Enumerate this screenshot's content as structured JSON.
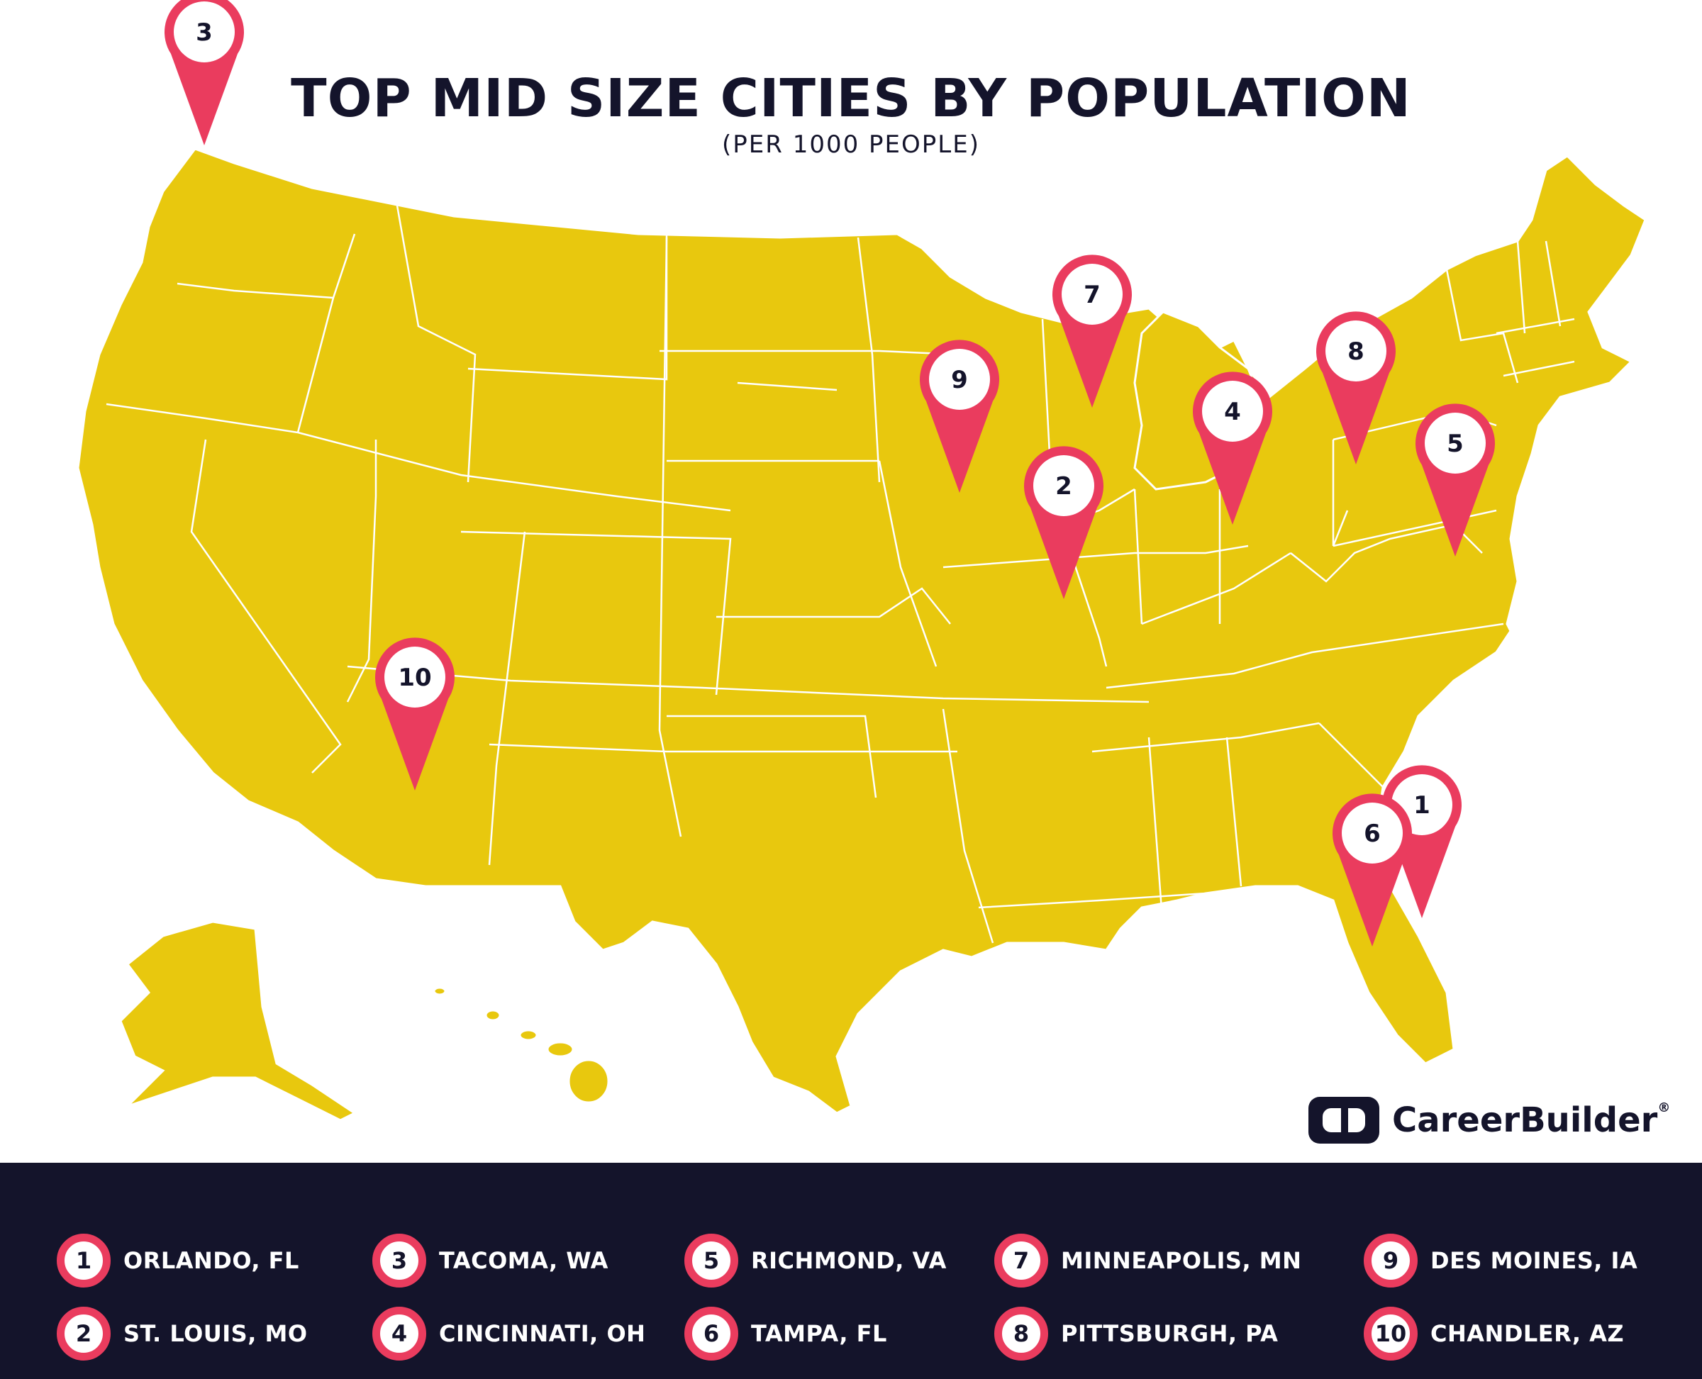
{
  "title": "TOP MID SIZE CITIES BY POPULATION",
  "subtitle": "(PER 1000 PEOPLE)",
  "brand": {
    "name": "CareerBuilder",
    "registered": "®"
  },
  "colors": {
    "land": "#e8c80e",
    "pin": "#ea3c5e",
    "dark": "#14142b",
    "white": "#ffffff"
  },
  "pins": [
    {
      "rank": "1",
      "city": "ORLANDO, FL"
    },
    {
      "rank": "2",
      "city": "ST. LOUIS, MO"
    },
    {
      "rank": "3",
      "city": "TACOMA, WA"
    },
    {
      "rank": "4",
      "city": "CINCINNATI, OH"
    },
    {
      "rank": "5",
      "city": "RICHMOND, VA"
    },
    {
      "rank": "6",
      "city": "TAMPA, FL"
    },
    {
      "rank": "7",
      "city": "MINNEAPOLIS, MN"
    },
    {
      "rank": "8",
      "city": "PITTSBURGH, PA"
    },
    {
      "rank": "9",
      "city": "DES MOINES, IA"
    },
    {
      "rank": "10",
      "city": "CHANDLER, AZ"
    }
  ]
}
